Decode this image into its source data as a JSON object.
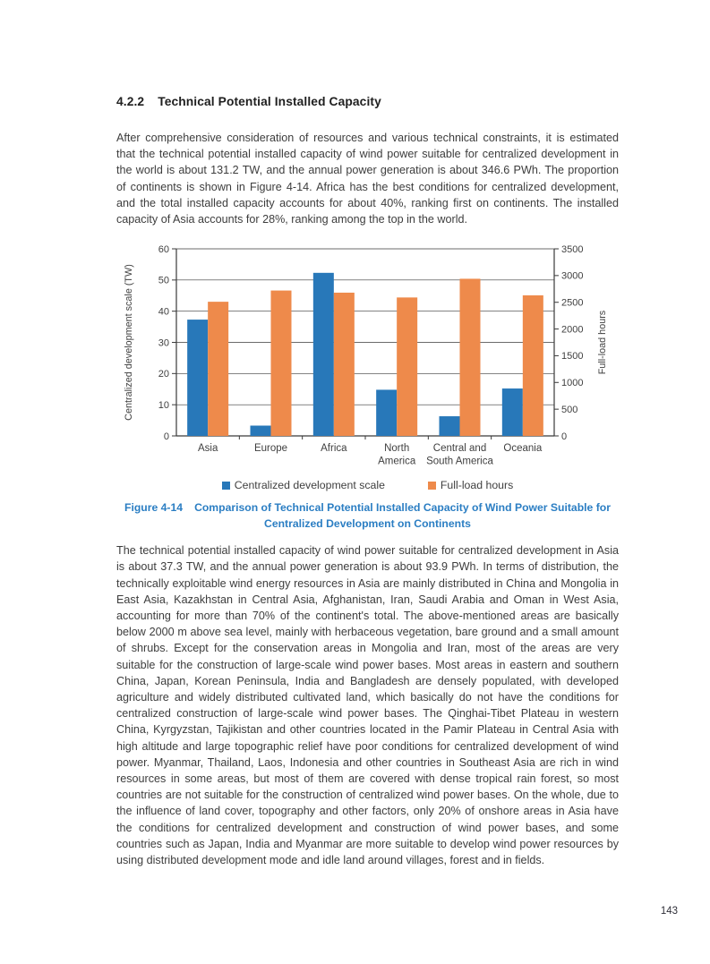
{
  "section": {
    "number": "4.2.2",
    "title": "Technical Potential Installed Capacity"
  },
  "paragraphs": {
    "intro": "After comprehensive consideration of resources and various technical constraints, it is estimated that the technical potential installed capacity of wind power suitable for centralized development in the world is about 131.2 TW, and the annual power generation is about 346.6 PWh. The proportion of continents is shown in Figure 4-14. Africa has the best conditions for centralized development, and the total installed capacity accounts for about 40%, ranking first on continents. The installed capacity of Asia accounts for 28%, ranking among the top in the world.",
    "asia": "The technical potential installed capacity of wind power suitable for centralized development in Asia is about 37.3 TW, and the annual power generation is about 93.9 PWh. In terms of distribution, the technically exploitable wind energy resources in Asia are mainly distributed in China and Mongolia in East Asia, Kazakhstan in Central Asia, Afghanistan, Iran, Saudi Arabia and Oman in West Asia, accounting for more than 70% of the continent's total. The above-mentioned areas are basically below 2000 m above sea level, mainly with herbaceous vegetation, bare ground and a small amount of shrubs. Except for the conservation areas in Mongolia and Iran, most of the areas are very suitable for the construction of large-scale wind power bases. Most areas in eastern and southern China, Japan, Korean Peninsula, India and Bangladesh are densely populated, with developed agriculture and widely distributed cultivated land, which basically do not have the conditions for centralized construction of large-scale wind power bases. The Qinghai-Tibet Plateau in western China, Kyrgyzstan, Tajikistan and other countries located in the Pamir Plateau in Central Asia with high altitude and large topographic relief have poor conditions for centralized development of wind power. Myanmar, Thailand, Laos, Indonesia and other countries in Southeast Asia are rich in wind resources in some areas, but most of them are covered with dense tropical rain forest, so most countries are not suitable for the construction of centralized wind power bases. On the whole, due to the influence of land cover, topography and other factors, only 20% of onshore areas in Asia have the conditions for centralized development and construction of wind power bases, and some countries such as Japan, India and Myanmar are more suitable to develop wind power resources by using distributed development mode and idle land around villages, forest and in fields."
  },
  "figure": {
    "label": "Figure 4-14",
    "caption": "Comparison of Technical Potential Installed Capacity of Wind Power Suitable for Centralized Development on Continents"
  },
  "chart_data": {
    "type": "bar",
    "title": "",
    "categories": [
      "Asia",
      "Europe",
      "Africa",
      "North America",
      "Central and South America",
      "Oceania"
    ],
    "series": [
      {
        "name": "Centralized development scale",
        "axis": "left",
        "color": "#2878B9",
        "values": [
          37.3,
          3.3,
          52.3,
          14.8,
          6.3,
          15.2
        ]
      },
      {
        "name": "Full-load hours",
        "axis": "right",
        "color": "#EE8A4B",
        "values": [
          2510,
          2720,
          2680,
          2590,
          2940,
          2630
        ]
      }
    ],
    "left_axis": {
      "label": "Centralized development scale (TW)",
      "min": 0,
      "max": 60,
      "step": 10,
      "ticks": [
        0,
        10,
        20,
        30,
        40,
        50,
        60
      ]
    },
    "right_axis": {
      "label": "Full-load hours",
      "min": 0,
      "max": 3500,
      "step": 500,
      "ticks": [
        0,
        500,
        1000,
        1500,
        2000,
        2500,
        3000,
        3500
      ]
    },
    "grid": true,
    "legend_position": "bottom"
  },
  "colors": {
    "caption_blue": "#2B7EC3",
    "bar_blue": "#2878B9",
    "bar_orange": "#EE8A4B",
    "grid_line": "#3a3a3a",
    "body_text": "#3d3d3d"
  },
  "page": {
    "number": "143"
  }
}
